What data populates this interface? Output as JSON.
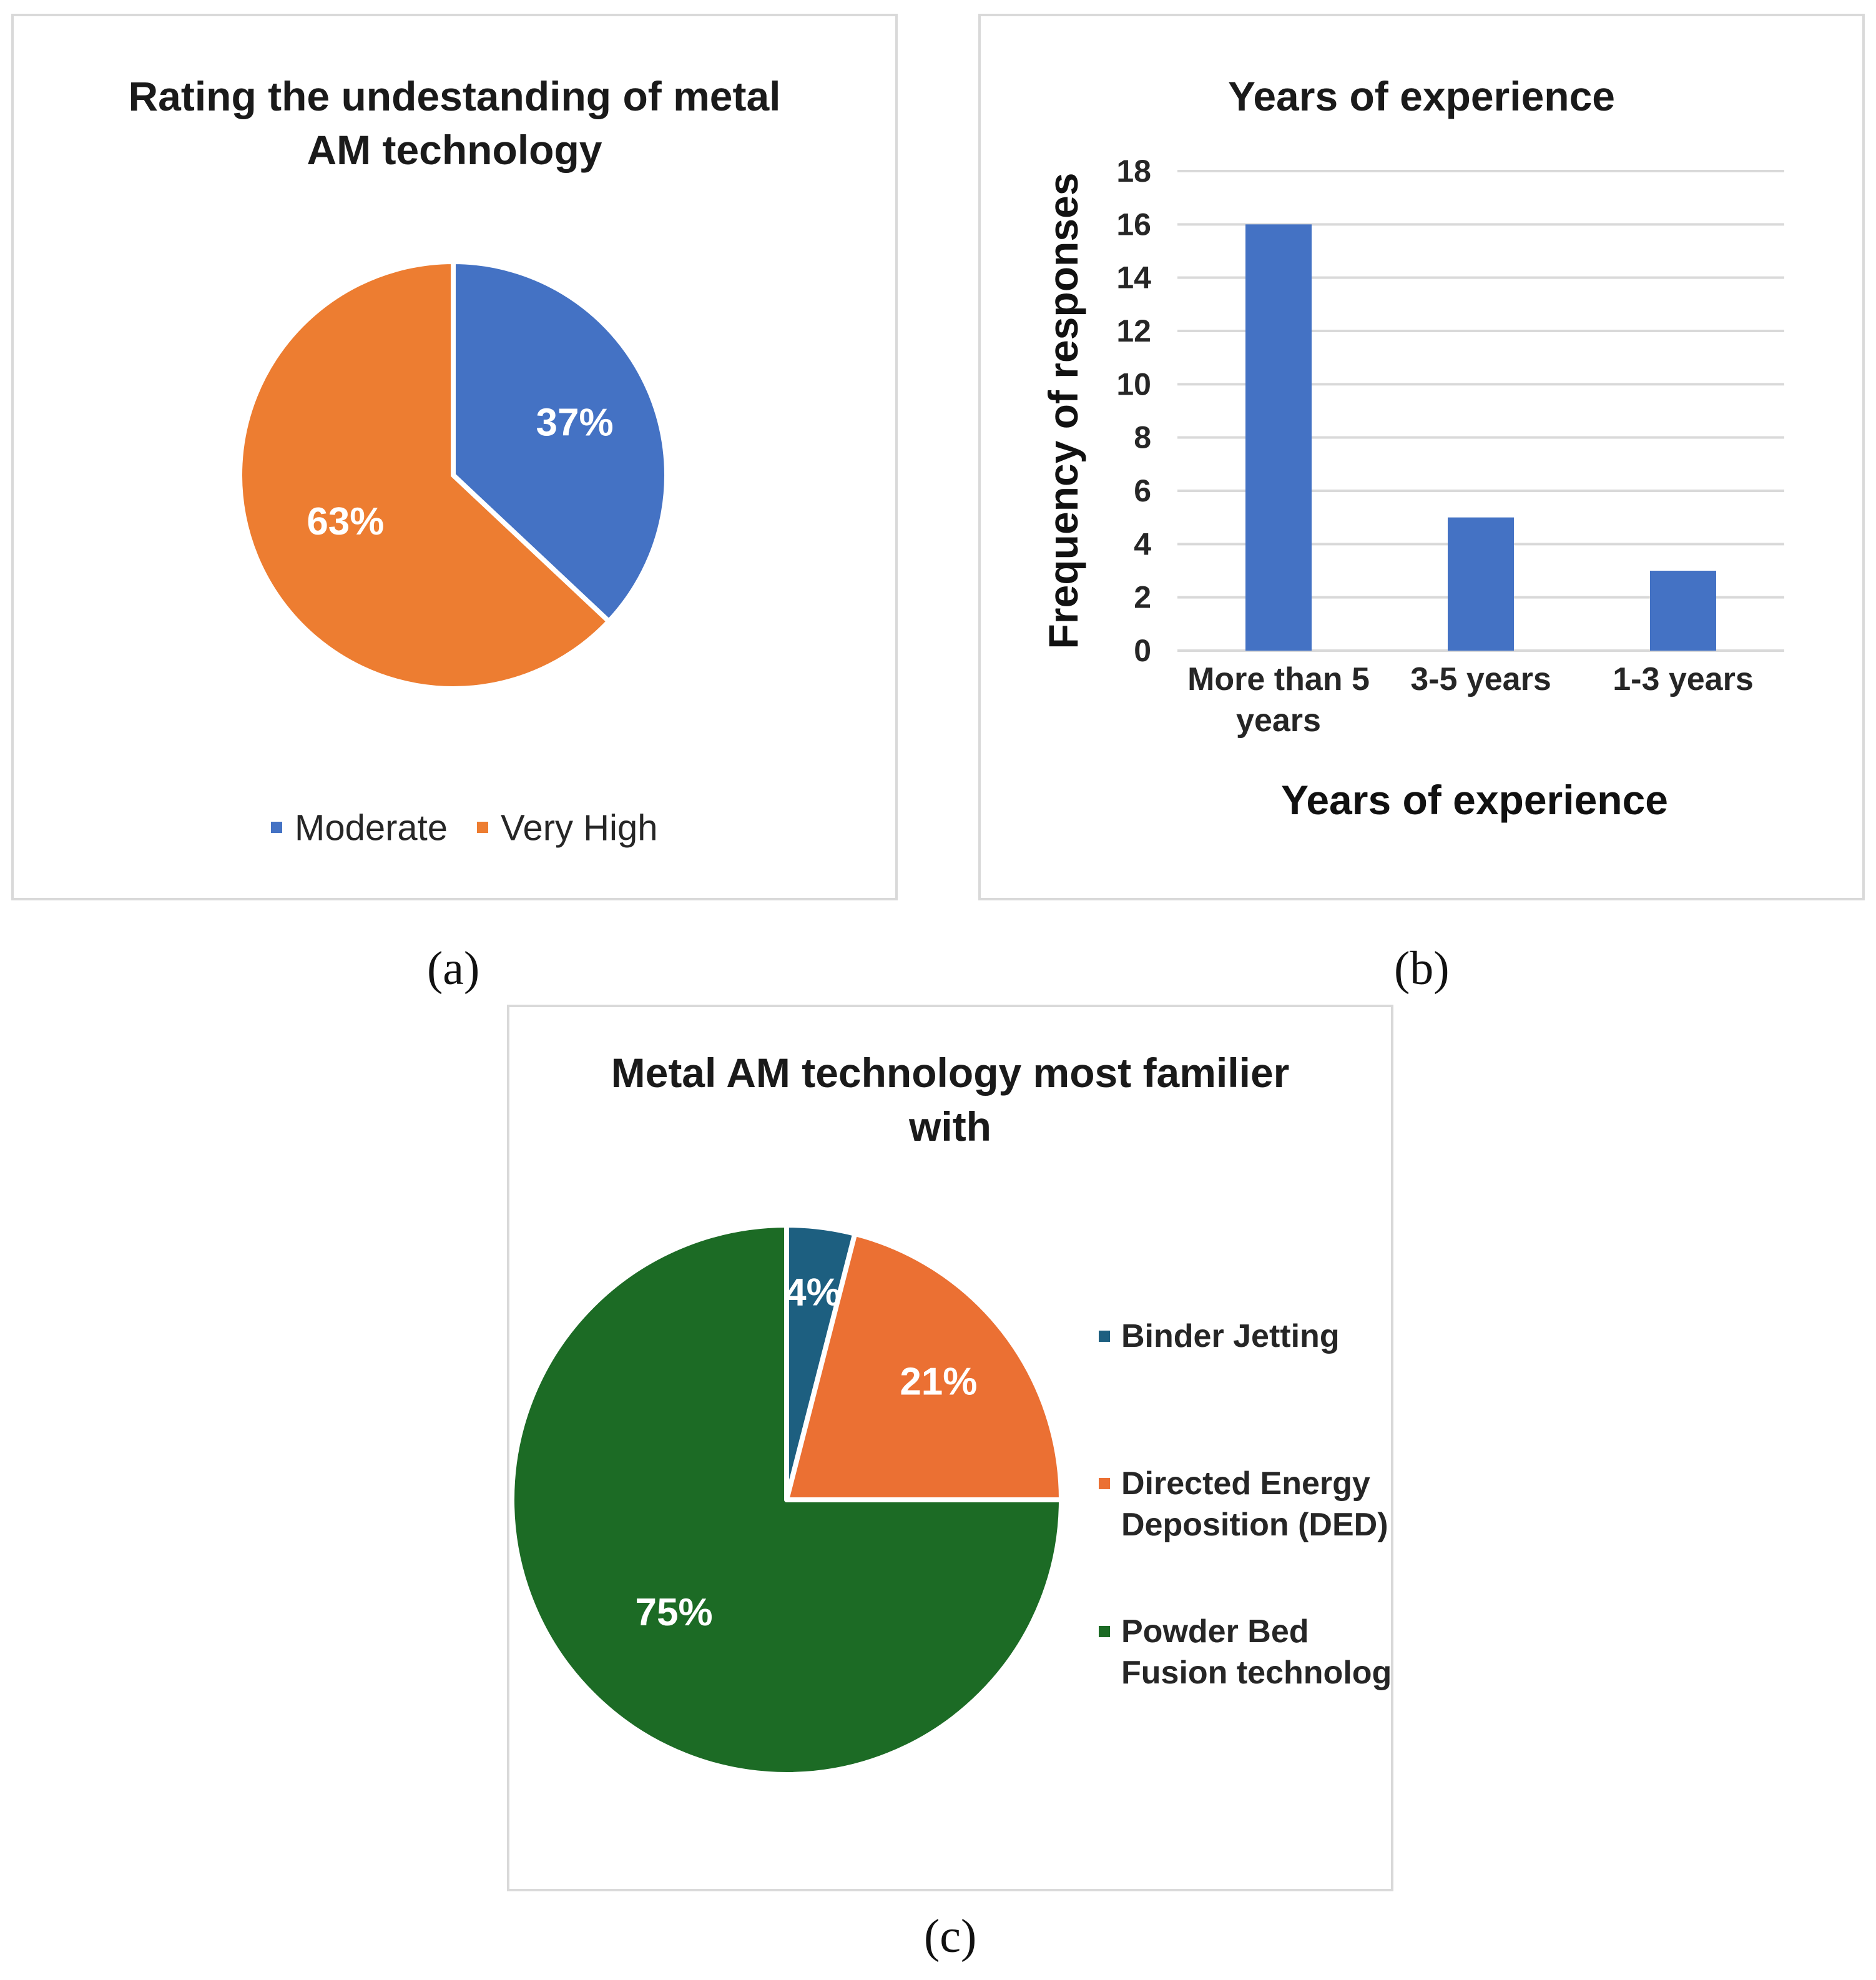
{
  "chart_data": [
    {
      "type": "pie",
      "panel": "(a)",
      "title": "Rating the undestanding of metal AM technology",
      "title_lines": [
        "Rating the undestanding of metal",
        "AM technology"
      ],
      "slices": [
        {
          "label": "Moderate",
          "value": 37,
          "display": "37%",
          "color": "#4472c4"
        },
        {
          "label": "Very High",
          "value": 63,
          "display": "63%",
          "color": "#ed7d31"
        }
      ],
      "legend_position": "bottom"
    },
    {
      "type": "bar",
      "panel": "(b)",
      "title": "Years of experience",
      "categories": [
        "More than 5 years",
        "3-5 years",
        "1-3 years"
      ],
      "category_lines": [
        [
          "More than 5",
          "years"
        ],
        [
          "3-5 years"
        ],
        [
          "1-3 years"
        ]
      ],
      "values": [
        16,
        5,
        3
      ],
      "xlabel": "Years of experience",
      "ylabel": "Frequency of  responses",
      "ylim": [
        0,
        18
      ],
      "yticks": [
        0,
        2,
        4,
        6,
        8,
        10,
        12,
        14,
        16,
        18
      ],
      "grid": true,
      "color": "#4472c4"
    },
    {
      "type": "pie",
      "panel": "(c)",
      "title": "Metal AM technology most familier with",
      "title_lines": [
        "Metal AM technology most familier",
        "with"
      ],
      "slices": [
        {
          "label": "Binder Jetting",
          "label_lines": [
            "Binder Jetting"
          ],
          "value": 4,
          "display": "4%",
          "color": "#1d5f80"
        },
        {
          "label": "Directed Energy Deposition (DED)",
          "label_lines": [
            "Directed Energy",
            "Deposition (DED)"
          ],
          "value": 21,
          "display": "21%",
          "color": "#eb7033"
        },
        {
          "label": "Powder Bed Fusion technology",
          "label_lines": [
            "Powder Bed",
            "Fusion technology"
          ],
          "value": 75,
          "display": "75%",
          "color": "#1c6b25"
        }
      ],
      "legend_position": "right"
    }
  ],
  "captions": {
    "a": "(a)",
    "b": "(b)",
    "c": "(c)"
  }
}
